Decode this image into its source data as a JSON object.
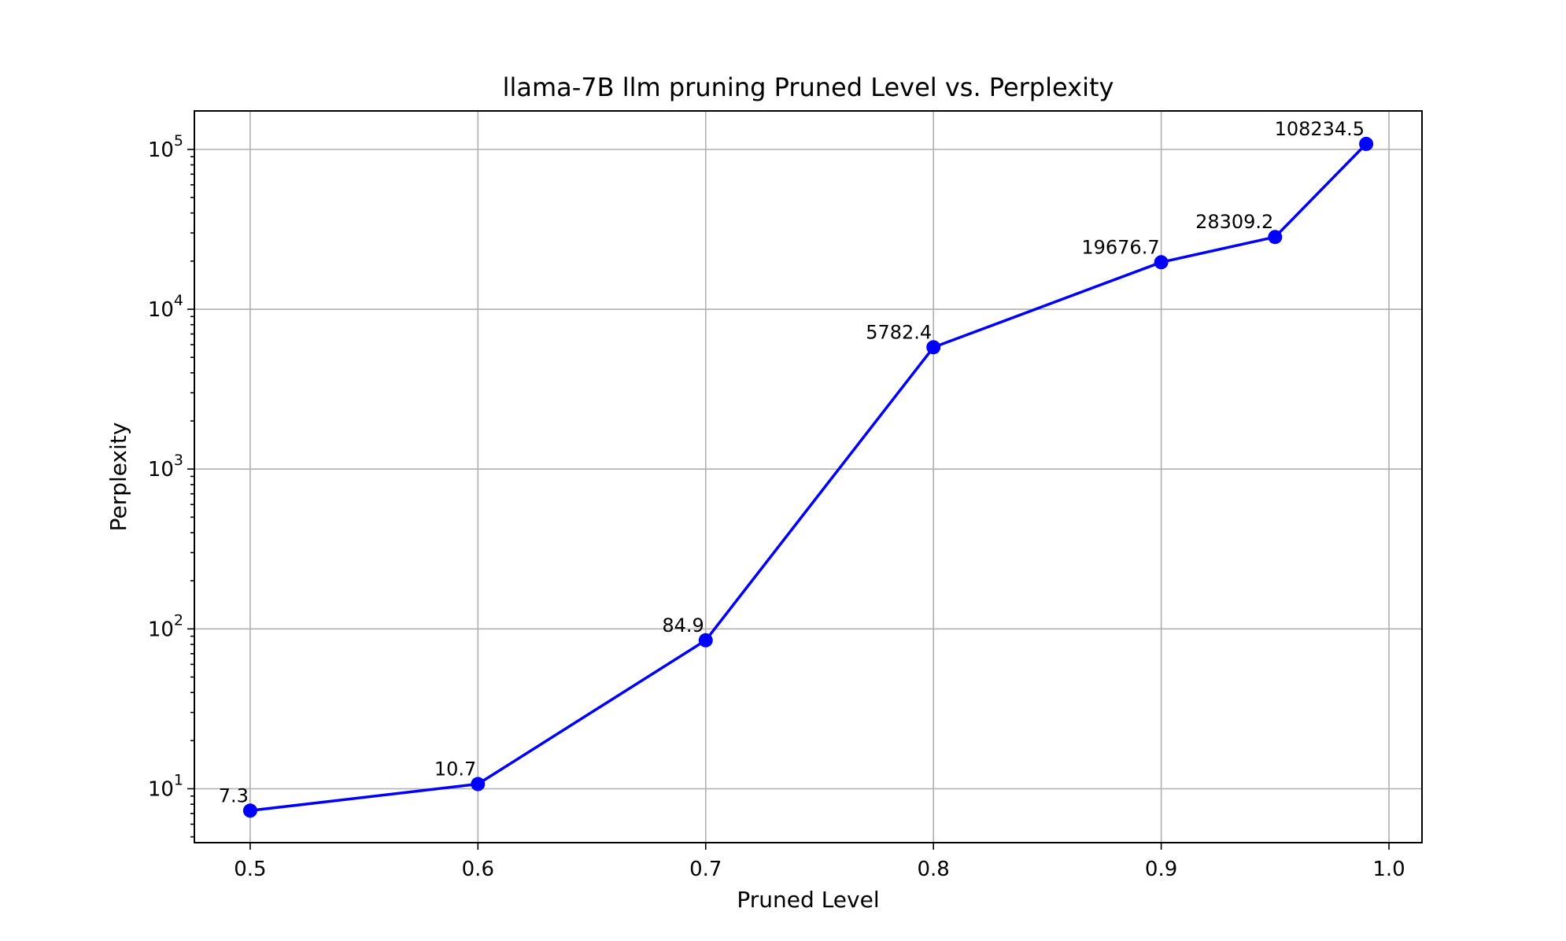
{
  "chart_data": {
    "type": "line",
    "title": "llama-7B llm pruning Pruned Level vs. Perplexity",
    "xlabel": "Pruned Level",
    "ylabel": "Perplexity",
    "x": [
      0.5,
      0.6,
      0.7,
      0.8,
      0.9,
      0.95,
      0.99
    ],
    "series": [
      {
        "values": [
          7.3,
          10.7,
          84.9,
          5782.4,
          19676.7,
          28309.2,
          108234.5
        ],
        "labels": [
          "7.3",
          "10.7",
          "84.9",
          "5782.4",
          "19676.7",
          "28309.2",
          "108234.5"
        ],
        "color": "#0000ff",
        "marker": "circle"
      }
    ],
    "xlim": [
      0.4755,
      1.0145
    ],
    "ylim": [
      4.6,
      174000
    ],
    "yscale": "log",
    "x_ticks": [
      {
        "value": 0.5,
        "label": "0.5"
      },
      {
        "value": 0.6,
        "label": "0.6"
      },
      {
        "value": 0.7,
        "label": "0.7"
      },
      {
        "value": 0.8,
        "label": "0.8"
      },
      {
        "value": 0.9,
        "label": "0.9"
      },
      {
        "value": 1.0,
        "label": "1.0"
      }
    ],
    "y_ticks": [
      {
        "value": 10,
        "base": "10",
        "exp": "1"
      },
      {
        "value": 100,
        "base": "10",
        "exp": "2"
      },
      {
        "value": 1000,
        "base": "10",
        "exp": "3"
      },
      {
        "value": 10000,
        "base": "10",
        "exp": "4"
      },
      {
        "value": 100000,
        "base": "10",
        "exp": "5"
      }
    ],
    "grid": true,
    "colors": {
      "line": "#0000ff",
      "grid": "#b0b0b0",
      "frame": "#000000"
    }
  }
}
